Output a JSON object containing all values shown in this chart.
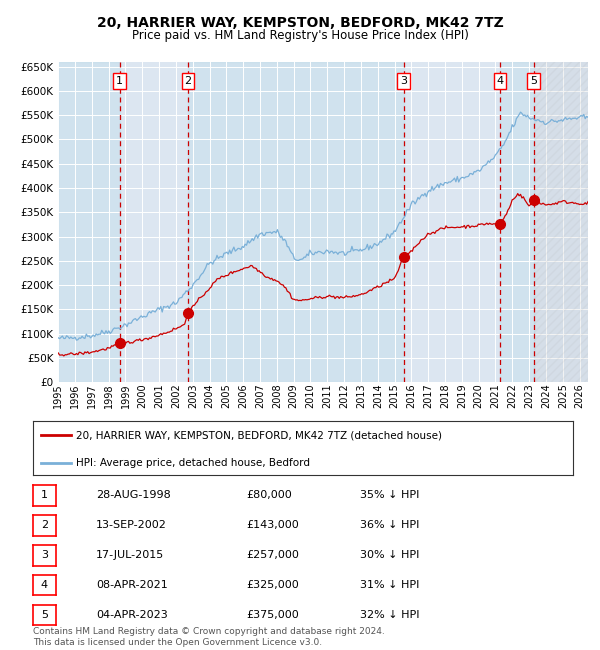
{
  "title": "20, HARRIER WAY, KEMPSTON, BEDFORD, MK42 7TZ",
  "subtitle": "Price paid vs. HM Land Registry's House Price Index (HPI)",
  "ylim": [
    0,
    660000
  ],
  "background_color": "#ffffff",
  "plot_bg_color": "#dce6f1",
  "grid_color": "#ffffff",
  "sale_dates_x": [
    1998.66,
    2002.71,
    2015.54,
    2021.27,
    2023.26
  ],
  "sale_prices_y": [
    80000,
    143000,
    257000,
    325000,
    375000
  ],
  "sale_labels": [
    "1",
    "2",
    "3",
    "4",
    "5"
  ],
  "sale_label_dates": [
    "28-AUG-1998",
    "13-SEP-2002",
    "17-JUL-2015",
    "08-APR-2021",
    "04-APR-2023"
  ],
  "sale_label_prices": [
    "£80,000",
    "£143,000",
    "£257,000",
    "£325,000",
    "£375,000"
  ],
  "sale_label_hpi": [
    "35% ↓ HPI",
    "36% ↓ HPI",
    "30% ↓ HPI",
    "31% ↓ HPI",
    "32% ↓ HPI"
  ],
  "legend_line1": "20, HARRIER WAY, KEMPSTON, BEDFORD, MK42 7TZ (detached house)",
  "legend_line2": "HPI: Average price, detached house, Bedford",
  "footer": "Contains HM Land Registry data © Crown copyright and database right 2024.\nThis data is licensed under the Open Government Licence v3.0.",
  "hpi_color": "#7ab0d8",
  "price_color": "#cc0000",
  "vline_color": "#cc0000",
  "marker_color": "#cc0000",
  "xmin": 1995.0,
  "xmax": 2026.5
}
